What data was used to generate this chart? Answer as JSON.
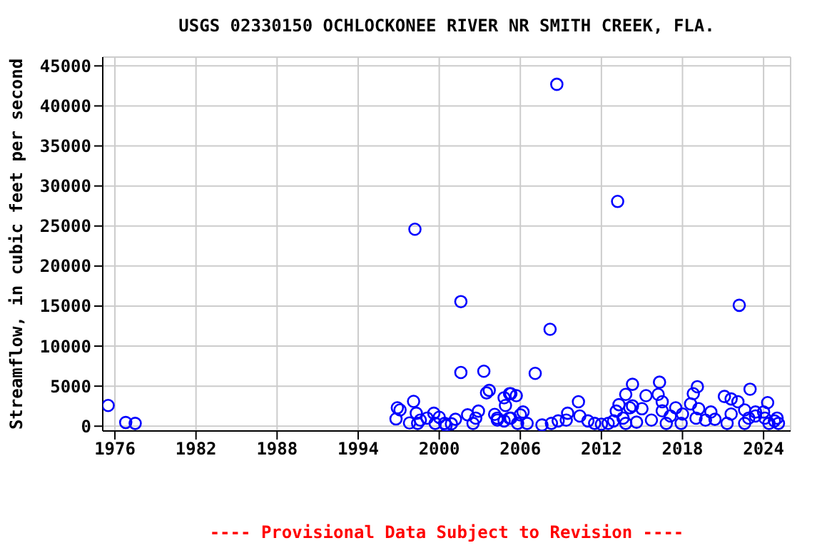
{
  "chart_data": {
    "type": "scatter",
    "title": "USGS 02330150 OCHLOCKONEE RIVER NR SMITH CREEK, FLA.",
    "ylabel": "Streamflow, in cubic feet per second",
    "annotations": [
      "---- Provisional Data Subject to Revision ----"
    ],
    "x": [
      1975.5,
      1976.8,
      1977.5,
      1996.8,
      1996.9,
      1997.1,
      1997.8,
      1998.1,
      1998.2,
      1998.3,
      1998.4,
      1998.6,
      1999.1,
      1999.6,
      1999.7,
      2000.0,
      2000.4,
      2000.5,
      2000.9,
      2001.2,
      2001.6,
      2001.6,
      2002.1,
      2002.5,
      2002.7,
      2002.9,
      2003.3,
      2003.5,
      2003.7,
      2004.1,
      2004.3,
      2004.3,
      2004.8,
      2004.8,
      2004.9,
      2005.2,
      2005.2,
      2005.3,
      2005.3,
      2005.7,
      2005.8,
      2006.0,
      2006.2,
      2006.5,
      2007.1,
      2007.6,
      2008.2,
      2008.3,
      2008.7,
      2008.8,
      2009.4,
      2009.5,
      2010.3,
      2010.4,
      2011.0,
      2011.5,
      2012.0,
      2012.5,
      2012.9,
      2013.1,
      2013.2,
      2013.3,
      2013.6,
      2013.8,
      2013.8,
      2014.1,
      2014.3,
      2014.3,
      2014.6,
      2015.0,
      2015.3,
      2015.7,
      2016.2,
      2016.3,
      2016.5,
      2016.5,
      2016.8,
      2017.1,
      2017.5,
      2017.9,
      2018.0,
      2018.6,
      2018.8,
      2019.0,
      2019.1,
      2019.2,
      2019.7,
      2020.1,
      2020.4,
      2021.1,
      2021.3,
      2021.6,
      2021.6,
      2022.1,
      2022.2,
      2022.6,
      2022.6,
      2022.9,
      2023.0,
      2023.4,
      2023.4,
      2024.0,
      2024.1,
      2024.3,
      2024.4,
      2024.8,
      2025.0,
      2025.1
    ],
    "series": [
      {
        "color": "#0000ff",
        "values": [
          2590,
          460,
          350,
          910,
          2290,
          2030,
          400,
          3100,
          24600,
          1620,
          350,
          760,
          1010,
          1620,
          350,
          1110,
          350,
          100,
          300,
          860,
          15560,
          6710,
          1420,
          350,
          1010,
          1880,
          6860,
          4160,
          4470,
          1470,
          760,
          1010,
          3550,
          660,
          2590,
          4060,
          1010,
          4060,
          1010,
          3810,
          350,
          1420,
          1770,
          350,
          6600,
          150,
          12100,
          350,
          42700,
          660,
          760,
          1620,
          3050,
          1270,
          660,
          350,
          250,
          350,
          660,
          1880,
          28070,
          2690,
          1010,
          3970,
          350,
          2290,
          5230,
          2530,
          500,
          2180,
          3810,
          760,
          3970,
          5490,
          3050,
          1920,
          350,
          1270,
          2290,
          350,
          1520,
          2790,
          4060,
          1010,
          4930,
          2180,
          760,
          1770,
          860,
          3710,
          350,
          3400,
          1520,
          3050,
          15100,
          2030,
          350,
          1010,
          4620,
          1770,
          1270,
          1770,
          1010,
          2940,
          350,
          660,
          1010,
          350
        ]
      }
    ],
    "xlim": [
      1975.1,
      2026.0
    ],
    "xticks": [
      1976,
      1982,
      1988,
      1994,
      2000,
      2006,
      2012,
      2018,
      2024
    ],
    "ylim": [
      -600,
      46100
    ],
    "yticks": [
      0,
      5000,
      10000,
      15000,
      20000,
      25000,
      30000,
      35000,
      40000,
      45000
    ],
    "grid": true,
    "marker": "circle"
  }
}
